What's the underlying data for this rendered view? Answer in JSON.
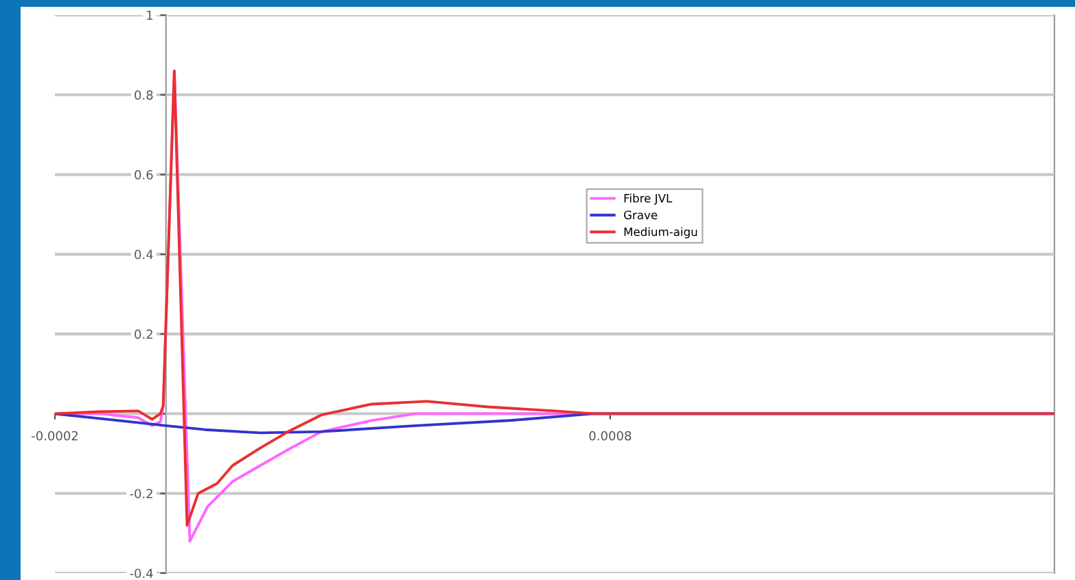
{
  "chart_data": {
    "type": "line",
    "xlim": [
      -0.0002,
      0.0016
    ],
    "xticks": [
      -0.0002,
      0.0008
    ],
    "ylim": [
      -0.4,
      1
    ],
    "yticks": [
      1,
      0.8,
      0.6,
      0.4,
      0.2,
      {
        "value": 0,
        "label": null
      },
      -0.2,
      -0.4
    ],
    "grid": "y",
    "legend": "center",
    "marker": "none",
    "line_style": "solid",
    "series": [
      {
        "name": "Fibre JVL",
        "color": "#ff66ff",
        "x": [
          -0.0002,
          -0.00012,
          -5e-05,
          -2.5e-05,
          -1e-05,
          -5e-06,
          1.5e-05,
          4.3e-05,
          7.5e-05,
          0.00012,
          0.00017,
          0.00022,
          0.00028,
          0.00037,
          0.00045,
          0.0016
        ],
        "values": [
          0,
          0,
          -0.01,
          -0.03,
          -0.02,
          0.02,
          0.86,
          -0.32,
          -0.233,
          -0.17,
          -0.13,
          -0.09,
          -0.045,
          -0.017,
          0,
          0
        ]
      },
      {
        "name": "Grave",
        "color": "#3333cc",
        "x": [
          -0.0002,
          -0.0001,
          0,
          7e-05,
          0.00017,
          0.00028,
          0.00045,
          0.00062,
          0.00077,
          0.0016
        ],
        "values": [
          0,
          -0.015,
          -0.03,
          -0.04,
          -0.048,
          -0.045,
          -0.03,
          -0.017,
          0,
          0
        ]
      },
      {
        "name": "Medium-aigu",
        "color": "#e83030",
        "x": [
          -0.0002,
          -0.00012,
          -5e-05,
          -2.5e-05,
          -1e-05,
          -5e-06,
          1.5e-05,
          3.8e-05,
          5.8e-05,
          9.2e-05,
          0.00012,
          0.00017,
          0.00022,
          0.00028,
          0.00037,
          0.00047,
          0.00058,
          0.0007,
          0.00077,
          0.0016
        ],
        "values": [
          0,
          0.005,
          0.007,
          -0.014,
          0,
          0.02,
          0.86,
          -0.28,
          -0.2,
          -0.175,
          -0.13,
          -0.086,
          -0.045,
          -0.003,
          0.024,
          0.031,
          0.017,
          0.007,
          0,
          0
        ]
      }
    ]
  }
}
